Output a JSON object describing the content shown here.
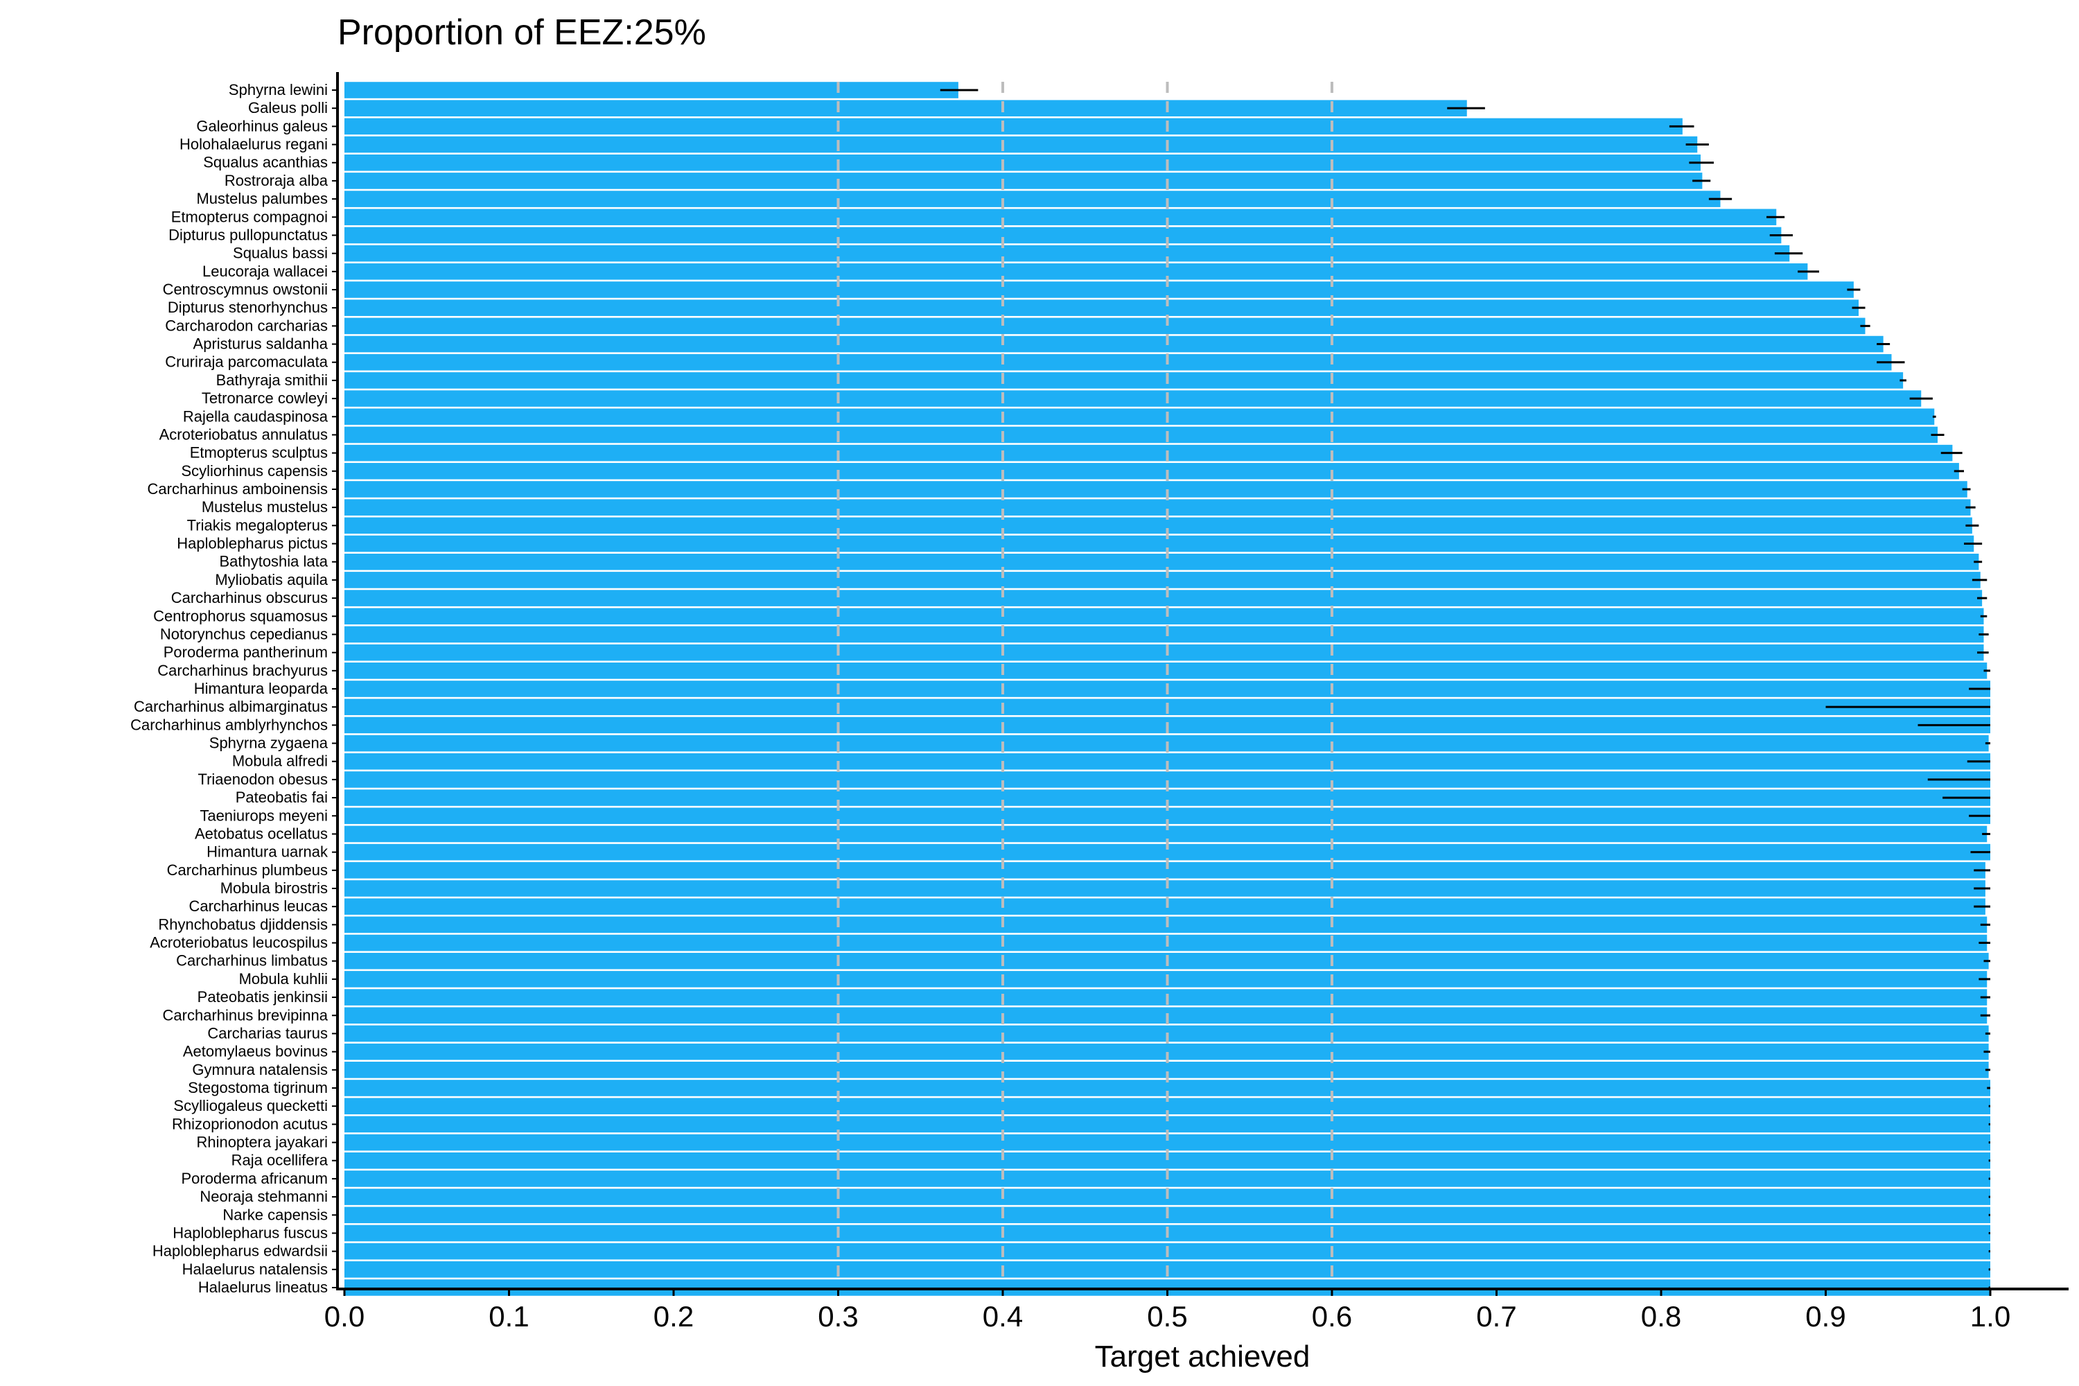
{
  "chart_data": {
    "type": "bar",
    "orientation": "horizontal",
    "title": "Proportion of EEZ:25%",
    "xlabel": "Target achieved",
    "ylabel": "",
    "xlim": [
      0,
      1.05
    ],
    "x_ticks": [
      "0.0",
      "0.1",
      "0.2",
      "0.3",
      "0.4",
      "0.5",
      "0.6",
      "0.7",
      "0.8",
      "0.9",
      "1.0"
    ],
    "reference_lines": [
      0.3,
      0.4,
      0.5,
      0.6
    ],
    "bar_color": "#1EAFF5",
    "error_bar_color": "#000000",
    "reference_line_color": "#BDBDBD",
    "grid": false,
    "categories": [
      "Sphyrna lewini",
      "Galeus polli",
      "Galeorhinus galeus",
      "Holohalaelurus regani",
      "Squalus acanthias",
      "Rostroraja alba",
      "Mustelus palumbes",
      "Etmopterus compagnoi",
      "Dipturus pullopunctatus",
      "Squalus bassi",
      "Leucoraja wallacei",
      "Centroscymnus owstonii",
      "Dipturus stenorhynchus",
      "Carcharodon carcharias",
      "Apristurus saldanha",
      "Cruriraja parcomaculata",
      "Bathyraja smithii",
      "Tetronarce cowleyi",
      "Rajella caudaspinosa",
      "Acroteriobatus annulatus",
      "Etmopterus sculptus",
      "Scyliorhinus capensis",
      "Carcharhinus amboinensis",
      "Mustelus mustelus",
      "Triakis megalopterus",
      "Haploblepharus pictus",
      "Bathytoshia lata",
      "Myliobatis aquila",
      "Carcharhinus obscurus",
      "Centrophorus squamosus",
      "Notorynchus cepedianus",
      "Poroderma pantherinum",
      "Carcharhinus brachyurus",
      "Himantura leoparda",
      "Carcharhinus albimarginatus",
      "Carcharhinus amblyrhynchos",
      "Sphyrna zygaena",
      "Mobula alfredi",
      "Triaenodon obesus",
      "Pateobatis fai",
      "Taeniurops meyeni",
      "Aetobatus ocellatus",
      "Himantura uarnak",
      "Carcharhinus plumbeus",
      "Mobula birostris",
      "Carcharhinus leucas",
      "Rhynchobatus djiddensis",
      "Acroteriobatus leucospilus",
      "Carcharhinus limbatus",
      "Mobula kuhlii",
      "Pateobatis jenkinsii",
      "Carcharhinus brevipinna",
      "Carcharias taurus",
      "Aetomylaeus bovinus",
      "Gymnura natalensis",
      "Stegostoma tigrinum",
      "Scylliogaleus quecketti",
      "Rhizoprionodon acutus",
      "Rhinoptera jayakari",
      "Raja ocellifera",
      "Poroderma africanum",
      "Neoraja stehmanni",
      "Narke capensis",
      "Haploblepharus fuscus",
      "Haploblepharus edwardsii",
      "Halaelurus natalensis",
      "Halaelurus lineatus"
    ],
    "values": [
      0.373,
      0.682,
      0.813,
      0.822,
      0.824,
      0.825,
      0.836,
      0.87,
      0.873,
      0.878,
      0.889,
      0.917,
      0.92,
      0.924,
      0.935,
      0.94,
      0.947,
      0.958,
      0.966,
      0.968,
      0.977,
      0.981,
      0.986,
      0.988,
      0.989,
      0.99,
      0.993,
      0.994,
      0.995,
      0.996,
      0.996,
      0.996,
      0.998,
      1.0,
      1.0,
      1.0,
      0.999,
      1.0,
      1.0,
      1.0,
      1.0,
      0.998,
      1.0,
      0.997,
      0.997,
      0.997,
      0.998,
      0.998,
      0.999,
      0.998,
      0.998,
      0.998,
      0.999,
      0.999,
      0.999,
      1.0,
      1.0,
      1.0,
      1.0,
      1.0,
      1.0,
      1.0,
      1.0,
      1.0,
      1.0,
      1.0,
      1.0
    ],
    "error_low": [
      0.362,
      0.67,
      0.805,
      0.815,
      0.817,
      0.819,
      0.829,
      0.864,
      0.866,
      0.869,
      0.883,
      0.913,
      0.916,
      0.921,
      0.931,
      0.931,
      0.945,
      0.951,
      0.965,
      0.964,
      0.97,
      0.978,
      0.983,
      0.985,
      0.985,
      0.984,
      0.99,
      0.989,
      0.992,
      0.994,
      0.993,
      0.992,
      0.996,
      0.987,
      0.9,
      0.956,
      0.997,
      0.986,
      0.962,
      0.971,
      0.987,
      0.995,
      0.988,
      0.99,
      0.99,
      0.99,
      0.994,
      0.993,
      0.996,
      0.993,
      0.994,
      0.994,
      0.997,
      0.996,
      0.997,
      0.998,
      0.999,
      0.999,
      0.999,
      0.999,
      0.999,
      0.999,
      0.999,
      0.999,
      0.999,
      0.999,
      0.999
    ],
    "error_high": [
      0.385,
      0.693,
      0.82,
      0.829,
      0.832,
      0.83,
      0.843,
      0.875,
      0.88,
      0.886,
      0.896,
      0.921,
      0.924,
      0.927,
      0.939,
      0.948,
      0.949,
      0.965,
      0.967,
      0.972,
      0.983,
      0.984,
      0.988,
      0.991,
      0.993,
      0.995,
      0.995,
      0.998,
      0.998,
      0.998,
      0.999,
      0.999,
      1.0,
      1.0,
      1.0,
      1.0,
      1.0,
      1.0,
      1.0,
      1.0,
      1.0,
      1.0,
      1.0,
      1.0,
      1.0,
      1.0,
      1.0,
      1.0,
      1.0,
      1.0,
      1.0,
      1.0,
      1.0,
      1.0,
      1.0,
      1.0,
      1.0,
      1.0,
      1.0,
      1.0,
      1.0,
      1.0,
      1.0,
      1.0,
      1.0,
      1.0,
      1.0
    ]
  }
}
